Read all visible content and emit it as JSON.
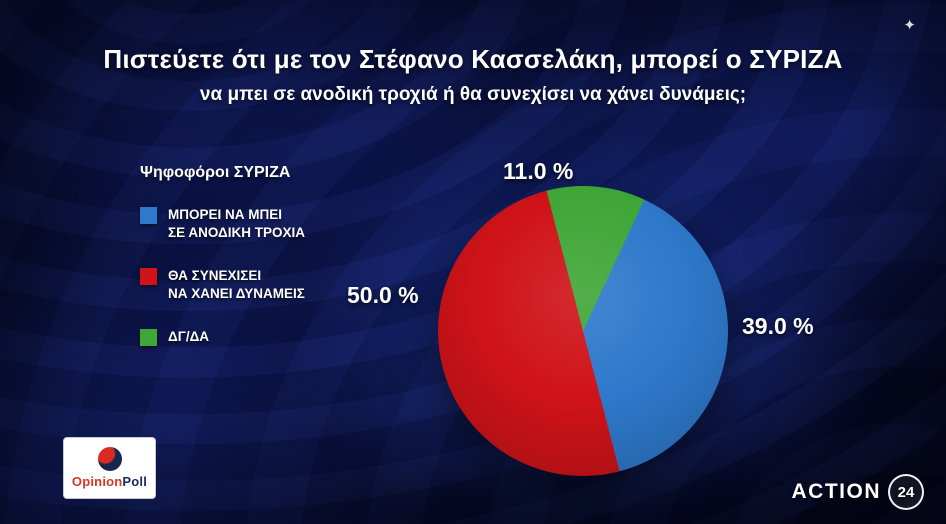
{
  "header": {
    "title": "Πιστεύετε ότι με τον Στέφανο Κασσελάκη, μπορεί ο ΣΥΡΙΖΑ",
    "subtitle": "να μπει σε ανοδική τροχιά ή θα συνεχίσει να χάνει δυνάμεις;"
  },
  "legend": {
    "title": "Ψηφοφόροι ΣΥΡΙΖΑ",
    "items": [
      {
        "line1": "ΜΠΟΡΕΙ ΝΑ ΜΠΕΙ",
        "line2": "ΣΕ ΑΝΟΔΙΚΗ ΤΡΟΧΙΑ",
        "color": "#2e79cb"
      },
      {
        "line1": "ΘΑ ΣΥΝΕΧΙΣΕΙ",
        "line2": "ΝΑ ΧΑΝΕΙ ΔΥΝΑΜΕΙΣ",
        "color": "#cf1318"
      },
      {
        "line1": "ΔΓ/ΔΑ",
        "line2": "",
        "color": "#3fa637"
      }
    ]
  },
  "chart_data": {
    "type": "pie",
    "title": "Πιστεύετε ότι με τον Στέφανο Κασσελάκη, μπορεί ο ΣΥΡΙΖΑ να μπει σε ανοδική τροχιά ή θα συνεχίσει να χάνει δυνάμεις;",
    "subtitle_group": "Ψηφοφόροι ΣΥΡΙΖΑ",
    "categories": [
      "ΜΠΟΡΕΙ ΝΑ ΜΠΕΙ ΣΕ ΑΝΟΔΙΚΗ ΤΡΟΧΙΑ",
      "ΘΑ ΣΥΝΕΧΙΣΕΙ ΝΑ ΧΑΝΕΙ ΔΥΝΑΜΕΙΣ",
      "ΔΓ/ΔΑ"
    ],
    "values": [
      39.0,
      50.0,
      11.0
    ],
    "colors": [
      "#2e79cb",
      "#cf1318",
      "#3fa637"
    ],
    "labels": [
      "39.0 %",
      "50.0 %",
      "11.0 %"
    ],
    "legend_position": "left",
    "start_angle_deg": 25
  },
  "logos": {
    "opinionpoll_part1": "Opinion",
    "opinionpoll_part2": "Poll",
    "action_text": "ACTION",
    "action_number": "24"
  },
  "icons": {
    "sparkle": "✦"
  },
  "colors": {
    "background": "#0a1140",
    "slice_blue": "#2e79cb",
    "slice_red": "#cf1318",
    "slice_green": "#3fa637",
    "text": "#ffffff"
  }
}
